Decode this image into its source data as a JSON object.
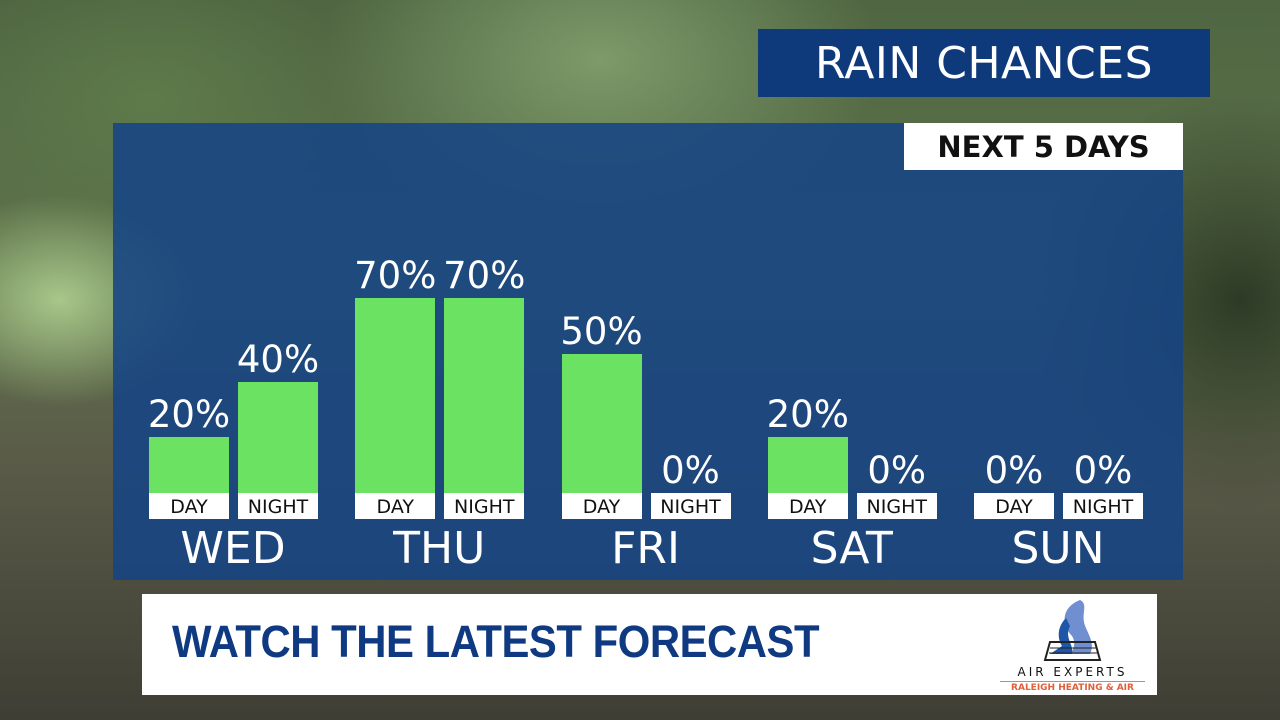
{
  "header": {
    "title": "RAIN CHANCES",
    "subtitle": "NEXT 5 DAYS"
  },
  "chart_data": {
    "type": "bar",
    "title": "RAIN CHANCES",
    "subtitle": "NEXT 5 DAYS",
    "categories": [
      "WED",
      "THU",
      "FRI",
      "SAT",
      "SUN"
    ],
    "sub_categories": [
      "DAY",
      "NIGHT"
    ],
    "bar_color": "#6ce262",
    "ylim": [
      0,
      100
    ],
    "series": [
      {
        "name": "DAY",
        "values": [
          20,
          70,
          50,
          20,
          0
        ],
        "labels": [
          "20%",
          "70%",
          "50%",
          "20%",
          "0%"
        ]
      },
      {
        "name": "NIGHT",
        "values": [
          40,
          70,
          0,
          0,
          0
        ],
        "labels": [
          "40%",
          "70%",
          "0%",
          "0%",
          "0%"
        ]
      }
    ]
  },
  "banner": {
    "text": "WATCH THE LATEST FORECAST",
    "sponsor_name": "AIR EXPERTS",
    "sponsor_tagline": "RALEIGH HEATING & AIR"
  },
  "colors": {
    "panel": "#164484",
    "title_bg": "#0e3a7c",
    "banner_text": "#0f3a82"
  }
}
